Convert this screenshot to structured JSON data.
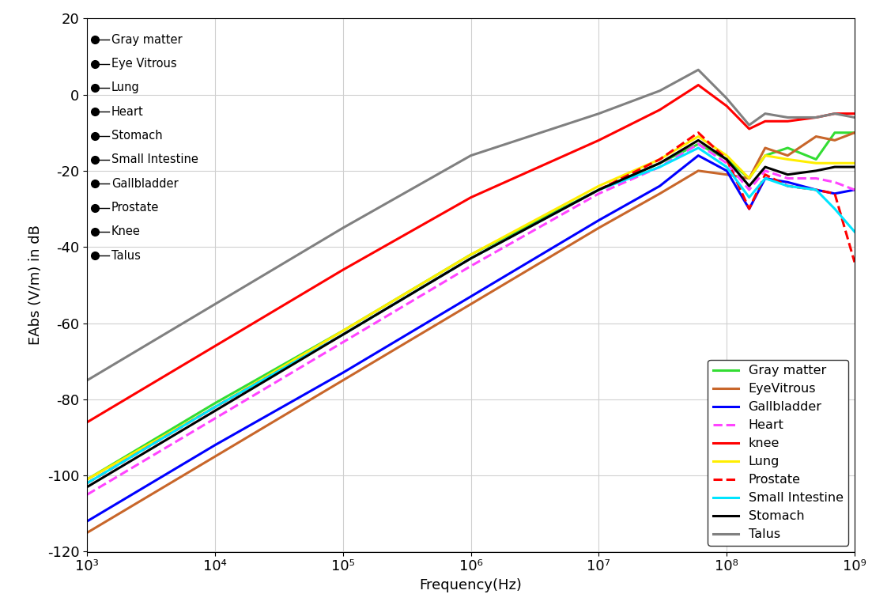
{
  "chart_data": {
    "type": "line",
    "x_label": "Frequency(Hz)",
    "y_label": "EAbs (V/m) in dB",
    "log": "x",
    "grid": true,
    "legend": "lower right",
    "xlim": [
      1000,
      1000000000
    ],
    "ylim": [
      -120,
      20
    ],
    "xticks": [
      {
        "value": 1000,
        "label": "10³"
      },
      {
        "value": 10000,
        "label": "10⁴"
      },
      {
        "value": 100000,
        "label": "10⁵"
      },
      {
        "value": 1000000,
        "label": "10⁶"
      },
      {
        "value": 10000000,
        "label": "10⁷"
      },
      {
        "value": 100000000,
        "label": "10⁸"
      },
      {
        "value": 1000000000,
        "label": "10⁹"
      }
    ],
    "yticks": [
      -120,
      -100,
      -80,
      -60,
      -40,
      -20,
      0,
      20
    ],
    "annotations": [
      "Gray matter",
      "Eye Vitrous",
      "Lung",
      "Heart",
      "Stomach",
      "Small Intestine",
      "Gallbladder",
      "Prostate",
      "Knee",
      "Talus"
    ],
    "x": [
      1000,
      10000,
      100000,
      1000000,
      10000000,
      30000000,
      60000000,
      100000000,
      150000000,
      200000000,
      300000000,
      500000000,
      700000000,
      1000000000
    ],
    "series": [
      {
        "name": "Gray matter",
        "color": "#33dd33",
        "line_style": "solid",
        "values": [
          -101,
          -81,
          -62,
          -42,
          -25,
          -18,
          -13,
          -17,
          -22,
          -16,
          -14,
          -17,
          -10,
          -10
        ]
      },
      {
        "name": "EyeVitrous",
        "color": "#c8662a",
        "line_style": "solid",
        "values": [
          -115,
          -95,
          -75,
          -55,
          -35,
          -26,
          -20,
          -21,
          -22,
          -14,
          -16,
          -11,
          -12,
          -10
        ]
      },
      {
        "name": "Gallbladder",
        "color": "#0000ff",
        "line_style": "solid",
        "values": [
          -112,
          -92,
          -73,
          -53,
          -33,
          -24,
          -16,
          -20,
          -30,
          -22,
          -23,
          -25,
          -26,
          -25
        ]
      },
      {
        "name": "Heart",
        "color": "#ff44ff",
        "line_style": "dashed",
        "values": [
          -105,
          -85,
          -65,
          -45,
          -26,
          -19,
          -13,
          -18,
          -25,
          -20,
          -22,
          -22,
          -23,
          -25
        ]
      },
      {
        "name": "knee",
        "color": "#ff0000",
        "line_style": "solid",
        "values": [
          -86,
          -66,
          -46,
          -27,
          -12,
          -4,
          2.5,
          -3,
          -9,
          -7,
          -7,
          -6,
          -5,
          -5
        ]
      },
      {
        "name": "Lung",
        "color": "#ffee00",
        "line_style": "solid",
        "values": [
          -101,
          -82,
          -62,
          -42,
          -24,
          -17,
          -11,
          -16,
          -22,
          -16,
          -17,
          -18,
          -18,
          -18
        ]
      },
      {
        "name": "Prostate",
        "color": "#ff0000",
        "line_style": "dashed",
        "values": [
          -102,
          -82,
          -63,
          -43,
          -25,
          -17,
          -10,
          -17,
          -30,
          -21,
          -24,
          -25,
          -26,
          -44
        ]
      },
      {
        "name": "Small Intestine",
        "color": "#00e5ff",
        "line_style": "solid",
        "values": [
          -102,
          -82,
          -63,
          -43,
          -25,
          -19,
          -14,
          -19,
          -27,
          -22,
          -24,
          -25,
          -30,
          -36
        ]
      },
      {
        "name": "Stomach",
        "color": "#000000",
        "line_style": "solid",
        "values": [
          -103,
          -83,
          -63,
          -43,
          -25,
          -18,
          -12,
          -17,
          -24,
          -19,
          -21,
          -20,
          -19,
          -19
        ]
      },
      {
        "name": "Talus",
        "color": "#808080",
        "line_style": "solid",
        "values": [
          -75,
          -55,
          -35,
          -16,
          -5,
          1,
          6.5,
          -1,
          -8,
          -5,
          -6,
          -6,
          -5,
          -6
        ]
      }
    ]
  }
}
